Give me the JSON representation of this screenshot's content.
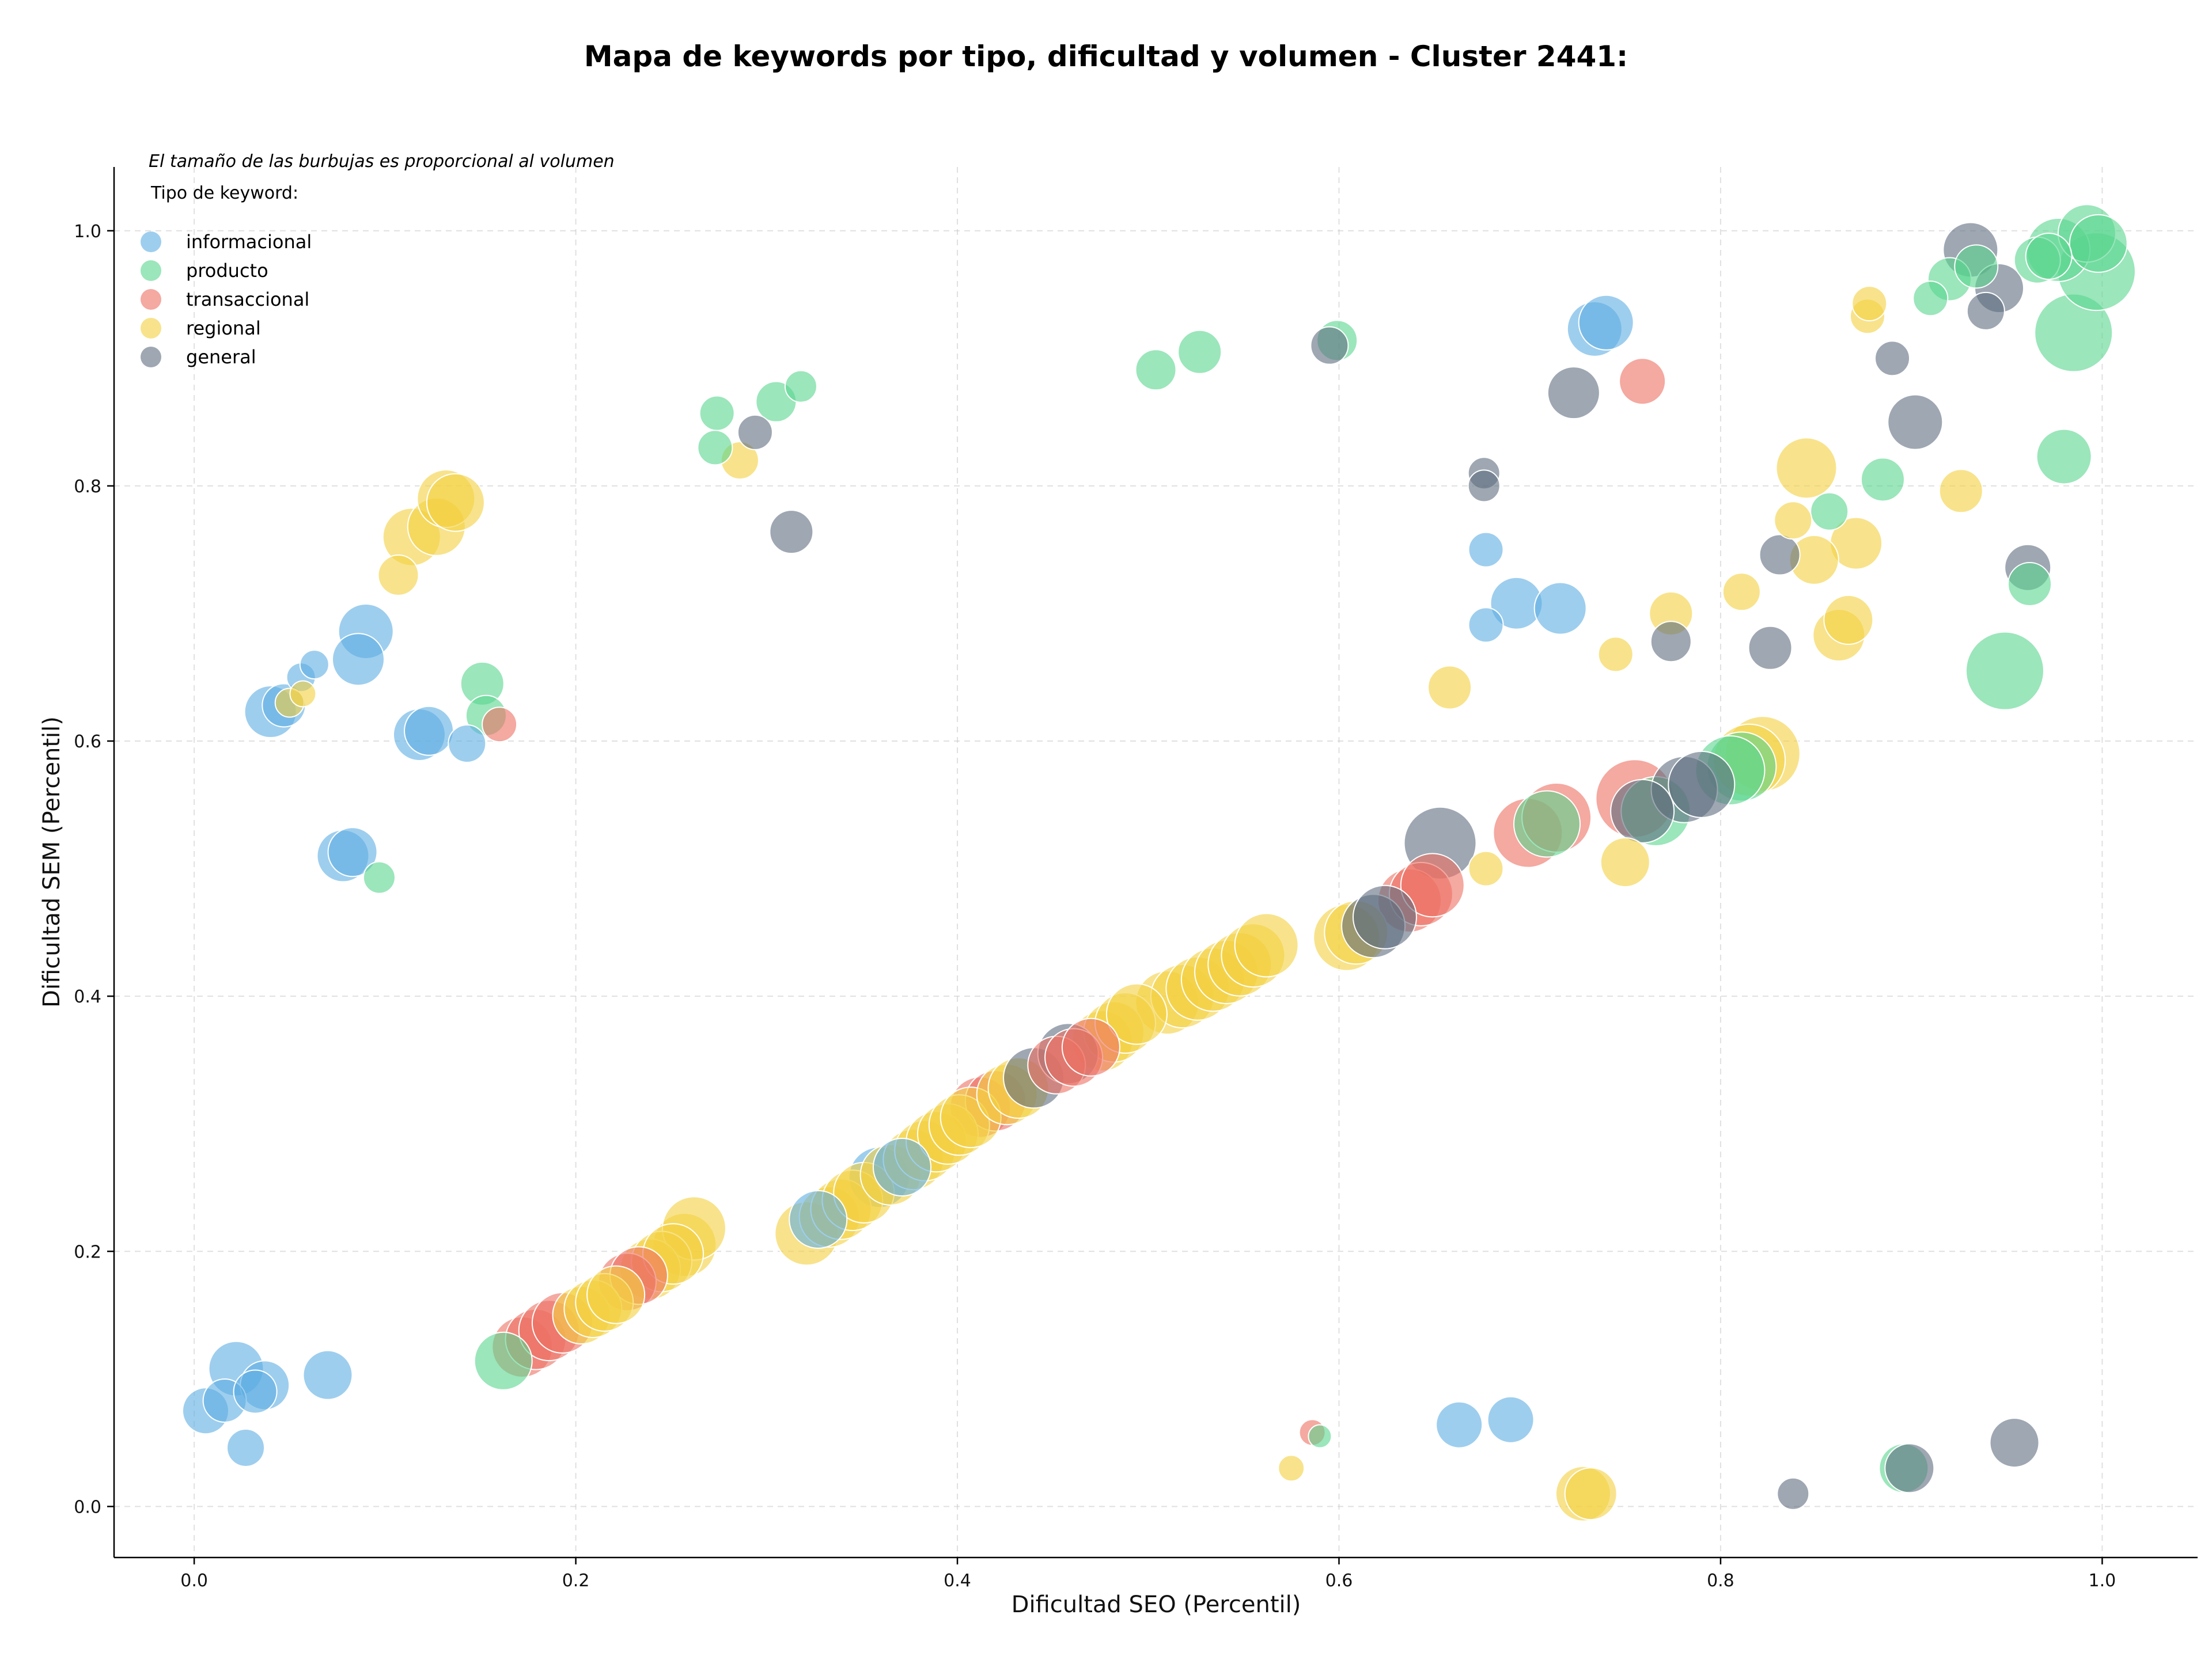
{
  "chart_data": {
    "type": "scatter",
    "title": "Mapa de keywords por tipo, dificultad y volumen - Cluster 2441:",
    "xlabel": "Dificultad SEO (Percentil)",
    "ylabel": "Dificultad SEM (Percentil)",
    "xlim": [
      -0.042,
      1.05
    ],
    "ylim": [
      -0.04,
      1.05
    ],
    "x_ticks": [
      0.0,
      0.2,
      0.4,
      0.6,
      0.8,
      1.0
    ],
    "y_ticks": [
      0.0,
      0.2,
      0.4,
      0.6,
      0.8,
      1.0
    ],
    "x_tick_labels": [
      "0.0",
      "0.2",
      "0.4",
      "0.6",
      "0.8",
      "1.0"
    ],
    "y_tick_labels": [
      "0.0",
      "0.2",
      "0.4",
      "0.6",
      "0.8",
      "1.0"
    ],
    "grid": true,
    "legend_position": "top-left",
    "annotation": "El tamaño de las burbujas es proporcional al volumen",
    "legend_title": "Tipo de keyword:",
    "series": [
      {
        "name": "informacional",
        "color": "#5DADE2",
        "points": [
          {
            "x": 0.006,
            "y": 0.075,
            "s": 16
          },
          {
            "x": 0.016,
            "y": 0.083,
            "s": 15
          },
          {
            "x": 0.022,
            "y": 0.108,
            "s": 19
          },
          {
            "x": 0.032,
            "y": 0.09,
            "s": 15
          },
          {
            "x": 0.037,
            "y": 0.095,
            "s": 17
          },
          {
            "x": 0.027,
            "y": 0.046,
            "s": 13
          },
          {
            "x": 0.07,
            "y": 0.103,
            "s": 17
          },
          {
            "x": 0.04,
            "y": 0.623,
            "s": 18
          },
          {
            "x": 0.047,
            "y": 0.628,
            "s": 15
          },
          {
            "x": 0.056,
            "y": 0.65,
            "s": 10
          },
          {
            "x": 0.063,
            "y": 0.66,
            "s": 10
          },
          {
            "x": 0.086,
            "y": 0.664,
            "s": 18
          },
          {
            "x": 0.09,
            "y": 0.686,
            "s": 19
          },
          {
            "x": 0.078,
            "y": 0.51,
            "s": 18
          },
          {
            "x": 0.083,
            "y": 0.513,
            "s": 17
          },
          {
            "x": 0.118,
            "y": 0.605,
            "s": 18
          },
          {
            "x": 0.123,
            "y": 0.608,
            "s": 17
          },
          {
            "x": 0.143,
            "y": 0.598,
            "s": 13
          },
          {
            "x": 0.734,
            "y": 0.923,
            "s": 19
          },
          {
            "x": 0.74,
            "y": 0.928,
            "s": 19
          },
          {
            "x": 0.677,
            "y": 0.75,
            "s": 12
          },
          {
            "x": 0.693,
            "y": 0.708,
            "s": 18
          },
          {
            "x": 0.716,
            "y": 0.704,
            "s": 18
          },
          {
            "x": 0.677,
            "y": 0.691,
            "s": 12
          },
          {
            "x": 0.663,
            "y": 0.064,
            "s": 16
          },
          {
            "x": 0.69,
            "y": 0.068,
            "s": 16
          },
          {
            "x": 0.327,
            "y": 0.225,
            "s": 20
          },
          {
            "x": 0.359,
            "y": 0.258,
            "s": 21
          },
          {
            "x": 0.371,
            "y": 0.266,
            "s": 20
          }
        ]
      },
      {
        "name": "producto",
        "color": "#58D68D",
        "points": [
          {
            "x": 0.097,
            "y": 0.493,
            "s": 11
          },
          {
            "x": 0.151,
            "y": 0.645,
            "s": 15
          },
          {
            "x": 0.153,
            "y": 0.62,
            "s": 14
          },
          {
            "x": 0.274,
            "y": 0.857,
            "s": 12
          },
          {
            "x": 0.273,
            "y": 0.83,
            "s": 12
          },
          {
            "x": 0.305,
            "y": 0.866,
            "s": 14
          },
          {
            "x": 0.318,
            "y": 0.878,
            "s": 11
          },
          {
            "x": 0.504,
            "y": 0.891,
            "s": 14
          },
          {
            "x": 0.527,
            "y": 0.905,
            "s": 15
          },
          {
            "x": 0.599,
            "y": 0.914,
            "s": 14
          },
          {
            "x": 0.162,
            "y": 0.114,
            "s": 20
          },
          {
            "x": 0.59,
            "y": 0.055,
            "s": 8
          },
          {
            "x": 0.766,
            "y": 0.545,
            "s": 24
          },
          {
            "x": 0.811,
            "y": 0.58,
            "s": 24
          },
          {
            "x": 0.805,
            "y": 0.577,
            "s": 24
          },
          {
            "x": 0.709,
            "y": 0.535,
            "s": 23
          },
          {
            "x": 0.885,
            "y": 0.805,
            "s": 15
          },
          {
            "x": 0.857,
            "y": 0.78,
            "s": 13
          },
          {
            "x": 0.949,
            "y": 0.655,
            "s": 27
          },
          {
            "x": 0.962,
            "y": 0.723,
            "s": 15
          },
          {
            "x": 0.98,
            "y": 0.823,
            "s": 19
          },
          {
            "x": 0.985,
            "y": 0.92,
            "s": 27
          },
          {
            "x": 0.997,
            "y": 0.968,
            "s": 27
          },
          {
            "x": 0.977,
            "y": 0.985,
            "s": 22
          },
          {
            "x": 0.992,
            "y": 0.998,
            "s": 20
          },
          {
            "x": 0.998,
            "y": 0.99,
            "s": 20
          },
          {
            "x": 0.966,
            "y": 0.977,
            "s": 16
          },
          {
            "x": 0.972,
            "y": 0.98,
            "s": 16
          },
          {
            "x": 0.91,
            "y": 0.947,
            "s": 12
          },
          {
            "x": 0.92,
            "y": 0.962,
            "s": 15
          },
          {
            "x": 0.934,
            "y": 0.972,
            "s": 15
          },
          {
            "x": 0.896,
            "y": 0.03,
            "s": 17
          }
        ]
      },
      {
        "name": "transaccional",
        "color": "#EC7063",
        "points": [
          {
            "x": 0.16,
            "y": 0.613,
            "s": 12
          },
          {
            "x": 0.759,
            "y": 0.882,
            "s": 16
          },
          {
            "x": 0.586,
            "y": 0.058,
            "s": 9
          },
          {
            "x": 0.172,
            "y": 0.125,
            "s": 21
          },
          {
            "x": 0.179,
            "y": 0.131,
            "s": 21
          },
          {
            "x": 0.186,
            "y": 0.138,
            "s": 21
          },
          {
            "x": 0.193,
            "y": 0.144,
            "s": 21
          },
          {
            "x": 0.227,
            "y": 0.176,
            "s": 20
          },
          {
            "x": 0.233,
            "y": 0.181,
            "s": 20
          },
          {
            "x": 0.412,
            "y": 0.313,
            "s": 21
          },
          {
            "x": 0.42,
            "y": 0.318,
            "s": 21
          },
          {
            "x": 0.452,
            "y": 0.346,
            "s": 20
          },
          {
            "x": 0.461,
            "y": 0.352,
            "s": 20
          },
          {
            "x": 0.47,
            "y": 0.36,
            "s": 20
          },
          {
            "x": 0.637,
            "y": 0.475,
            "s": 22
          },
          {
            "x": 0.643,
            "y": 0.48,
            "s": 22
          },
          {
            "x": 0.649,
            "y": 0.487,
            "s": 22
          },
          {
            "x": 0.699,
            "y": 0.528,
            "s": 24
          },
          {
            "x": 0.714,
            "y": 0.54,
            "s": 24
          },
          {
            "x": 0.755,
            "y": 0.555,
            "s": 27
          }
        ]
      },
      {
        "name": "regional",
        "color": "#F4D03F",
        "points": [
          {
            "x": 0.05,
            "y": 0.63,
            "s": 10
          },
          {
            "x": 0.057,
            "y": 0.637,
            "s": 9
          },
          {
            "x": 0.107,
            "y": 0.73,
            "s": 14
          },
          {
            "x": 0.114,
            "y": 0.76,
            "s": 20
          },
          {
            "x": 0.127,
            "y": 0.768,
            "s": 20
          },
          {
            "x": 0.132,
            "y": 0.79,
            "s": 20
          },
          {
            "x": 0.137,
            "y": 0.787,
            "s": 20
          },
          {
            "x": 0.286,
            "y": 0.82,
            "s": 13
          },
          {
            "x": 0.575,
            "y": 0.03,
            "s": 9
          },
          {
            "x": 0.728,
            "y": 0.01,
            "s": 19
          },
          {
            "x": 0.732,
            "y": 0.01,
            "s": 18
          },
          {
            "x": 0.658,
            "y": 0.642,
            "s": 15
          },
          {
            "x": 0.677,
            "y": 0.5,
            "s": 12
          },
          {
            "x": 0.745,
            "y": 0.668,
            "s": 12
          },
          {
            "x": 0.75,
            "y": 0.505,
            "s": 17
          },
          {
            "x": 0.774,
            "y": 0.7,
            "s": 15
          },
          {
            "x": 0.811,
            "y": 0.717,
            "s": 13
          },
          {
            "x": 0.838,
            "y": 0.773,
            "s": 13
          },
          {
            "x": 0.849,
            "y": 0.742,
            "s": 17
          },
          {
            "x": 0.845,
            "y": 0.814,
            "s": 21
          },
          {
            "x": 0.871,
            "y": 0.755,
            "s": 18
          },
          {
            "x": 0.862,
            "y": 0.683,
            "s": 18
          },
          {
            "x": 0.867,
            "y": 0.695,
            "s": 17
          },
          {
            "x": 0.877,
            "y": 0.933,
            "s": 12
          },
          {
            "x": 0.878,
            "y": 0.943,
            "s": 12
          },
          {
            "x": 0.926,
            "y": 0.796,
            "s": 15
          },
          {
            "x": 0.321,
            "y": 0.214,
            "s": 22
          },
          {
            "x": 0.203,
            "y": 0.15,
            "s": 20
          },
          {
            "x": 0.209,
            "y": 0.155,
            "s": 20
          },
          {
            "x": 0.215,
            "y": 0.16,
            "s": 20
          },
          {
            "x": 0.221,
            "y": 0.166,
            "s": 20
          },
          {
            "x": 0.239,
            "y": 0.186,
            "s": 21
          },
          {
            "x": 0.245,
            "y": 0.192,
            "s": 21
          },
          {
            "x": 0.251,
            "y": 0.198,
            "s": 21
          },
          {
            "x": 0.257,
            "y": 0.205,
            "s": 22
          },
          {
            "x": 0.262,
            "y": 0.218,
            "s": 22
          },
          {
            "x": 0.333,
            "y": 0.227,
            "s": 21
          },
          {
            "x": 0.339,
            "y": 0.233,
            "s": 21
          },
          {
            "x": 0.345,
            "y": 0.24,
            "s": 21
          },
          {
            "x": 0.351,
            "y": 0.246,
            "s": 21
          },
          {
            "x": 0.365,
            "y": 0.26,
            "s": 21
          },
          {
            "x": 0.377,
            "y": 0.272,
            "s": 21
          },
          {
            "x": 0.383,
            "y": 0.279,
            "s": 21
          },
          {
            "x": 0.389,
            "y": 0.286,
            "s": 21
          },
          {
            "x": 0.395,
            "y": 0.292,
            "s": 21
          },
          {
            "x": 0.401,
            "y": 0.299,
            "s": 21
          },
          {
            "x": 0.407,
            "y": 0.305,
            "s": 21
          },
          {
            "x": 0.426,
            "y": 0.323,
            "s": 21
          },
          {
            "x": 0.432,
            "y": 0.328,
            "s": 21
          },
          {
            "x": 0.476,
            "y": 0.365,
            "s": 21
          },
          {
            "x": 0.482,
            "y": 0.372,
            "s": 21
          },
          {
            "x": 0.488,
            "y": 0.379,
            "s": 21
          },
          {
            "x": 0.494,
            "y": 0.386,
            "s": 21
          },
          {
            "x": 0.51,
            "y": 0.395,
            "s": 22
          },
          {
            "x": 0.518,
            "y": 0.4,
            "s": 22
          },
          {
            "x": 0.526,
            "y": 0.406,
            "s": 22
          },
          {
            "x": 0.534,
            "y": 0.413,
            "s": 22
          },
          {
            "x": 0.541,
            "y": 0.419,
            "s": 22
          },
          {
            "x": 0.548,
            "y": 0.425,
            "s": 22
          },
          {
            "x": 0.555,
            "y": 0.432,
            "s": 22
          },
          {
            "x": 0.562,
            "y": 0.44,
            "s": 22
          },
          {
            "x": 0.604,
            "y": 0.446,
            "s": 23
          },
          {
            "x": 0.609,
            "y": 0.45,
            "s": 22
          },
          {
            "x": 0.815,
            "y": 0.585,
            "s": 25
          },
          {
            "x": 0.822,
            "y": 0.59,
            "s": 26
          }
        ]
      },
      {
        "name": "general",
        "color": "#5D6D7E",
        "points": [
          {
            "x": 0.294,
            "y": 0.842,
            "s": 12
          },
          {
            "x": 0.313,
            "y": 0.764,
            "s": 15
          },
          {
            "x": 0.595,
            "y": 0.91,
            "s": 13
          },
          {
            "x": 0.676,
            "y": 0.81,
            "s": 11
          },
          {
            "x": 0.676,
            "y": 0.8,
            "s": 11
          },
          {
            "x": 0.723,
            "y": 0.873,
            "s": 18
          },
          {
            "x": 0.774,
            "y": 0.678,
            "s": 14
          },
          {
            "x": 0.826,
            "y": 0.673,
            "s": 15
          },
          {
            "x": 0.831,
            "y": 0.746,
            "s": 14
          },
          {
            "x": 0.89,
            "y": 0.9,
            "s": 12
          },
          {
            "x": 0.902,
            "y": 0.85,
            "s": 19
          },
          {
            "x": 0.931,
            "y": 0.985,
            "s": 19
          },
          {
            "x": 0.939,
            "y": 0.937,
            "s": 13
          },
          {
            "x": 0.946,
            "y": 0.955,
            "s": 17
          },
          {
            "x": 0.961,
            "y": 0.736,
            "s": 16
          },
          {
            "x": 0.838,
            "y": 0.01,
            "s": 11
          },
          {
            "x": 0.899,
            "y": 0.03,
            "s": 17
          },
          {
            "x": 0.954,
            "y": 0.05,
            "s": 17
          },
          {
            "x": 0.44,
            "y": 0.336,
            "s": 21
          },
          {
            "x": 0.458,
            "y": 0.355,
            "s": 21
          },
          {
            "x": 0.618,
            "y": 0.455,
            "s": 22
          },
          {
            "x": 0.624,
            "y": 0.462,
            "s": 22
          },
          {
            "x": 0.653,
            "y": 0.52,
            "s": 25
          },
          {
            "x": 0.759,
            "y": 0.545,
            "s": 22
          },
          {
            "x": 0.781,
            "y": 0.562,
            "s": 23
          },
          {
            "x": 0.79,
            "y": 0.566,
            "s": 23
          }
        ]
      }
    ]
  }
}
